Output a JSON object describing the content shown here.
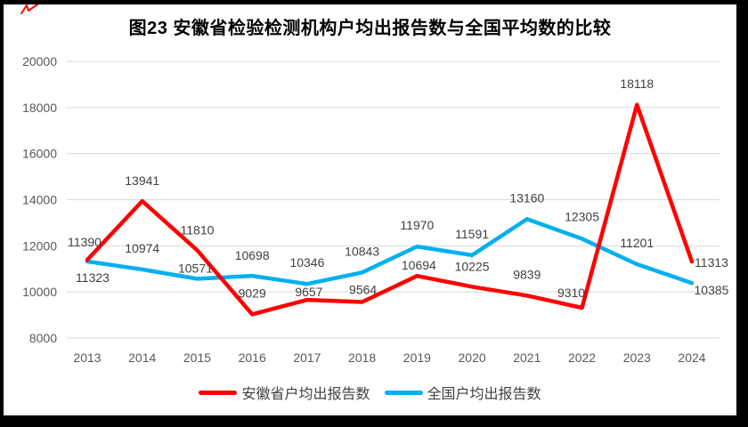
{
  "title": "图23 安徽省检验检测机构户均出报告数与全国平均数的比较",
  "colors": {
    "anhui_line": "#FF0000",
    "national_line": "#00B0F0",
    "gridline": "#D9D9D9",
    "axis_label": "#595959",
    "data_label": "#404040",
    "legend_text": "#404040",
    "frame_border": "#000000",
    "background": "#FFFFFF",
    "corner_mark": "#FF0000"
  },
  "chart_data": {
    "type": "line",
    "title": "图23 安徽省检验检测机构户均出报告数与全国平均数的比较",
    "categories": [
      "2013",
      "2014",
      "2015",
      "2016",
      "2017",
      "2018",
      "2019",
      "2020",
      "2021",
      "2022",
      "2023",
      "2024"
    ],
    "series": [
      {
        "name": "安徽省户均出报告数",
        "color": "#FF0000",
        "values": [
          11390,
          13941,
          11810,
          9029,
          9657,
          9564,
          10694,
          10225,
          9839,
          9310,
          18118,
          11313
        ],
        "label_offsets": [
          [
            -3,
            -20
          ],
          [
            0,
            -23
          ],
          [
            0,
            -23
          ],
          [
            0,
            -24
          ],
          [
            2,
            -9
          ],
          [
            1,
            -14
          ],
          [
            2,
            -12
          ],
          [
            0,
            -23
          ],
          [
            0,
            -24
          ],
          [
            -12,
            -17
          ],
          [
            0,
            -24
          ],
          [
            22,
            1
          ]
        ]
      },
      {
        "name": "全国户均出报告数",
        "color": "#00B0F0",
        "values": [
          11323,
          10974,
          10571,
          10698,
          10346,
          10843,
          11970,
          11591,
          13160,
          12305,
          11201,
          10385
        ],
        "label_offsets": [
          [
            6,
            18
          ],
          [
            0,
            -24
          ],
          [
            -2,
            -12
          ],
          [
            0,
            -23
          ],
          [
            0,
            -24
          ],
          [
            0,
            -24
          ],
          [
            0,
            -24
          ],
          [
            0,
            -24
          ],
          [
            0,
            -24
          ],
          [
            0,
            -25
          ],
          [
            0,
            -24
          ],
          [
            22,
            8
          ]
        ]
      }
    ],
    "ylim": [
      8000,
      20000
    ],
    "yticks": [
      8000,
      10000,
      12000,
      14000,
      16000,
      18000,
      20000
    ],
    "grid": true,
    "data_labels": true,
    "legend_position": "bottom"
  }
}
